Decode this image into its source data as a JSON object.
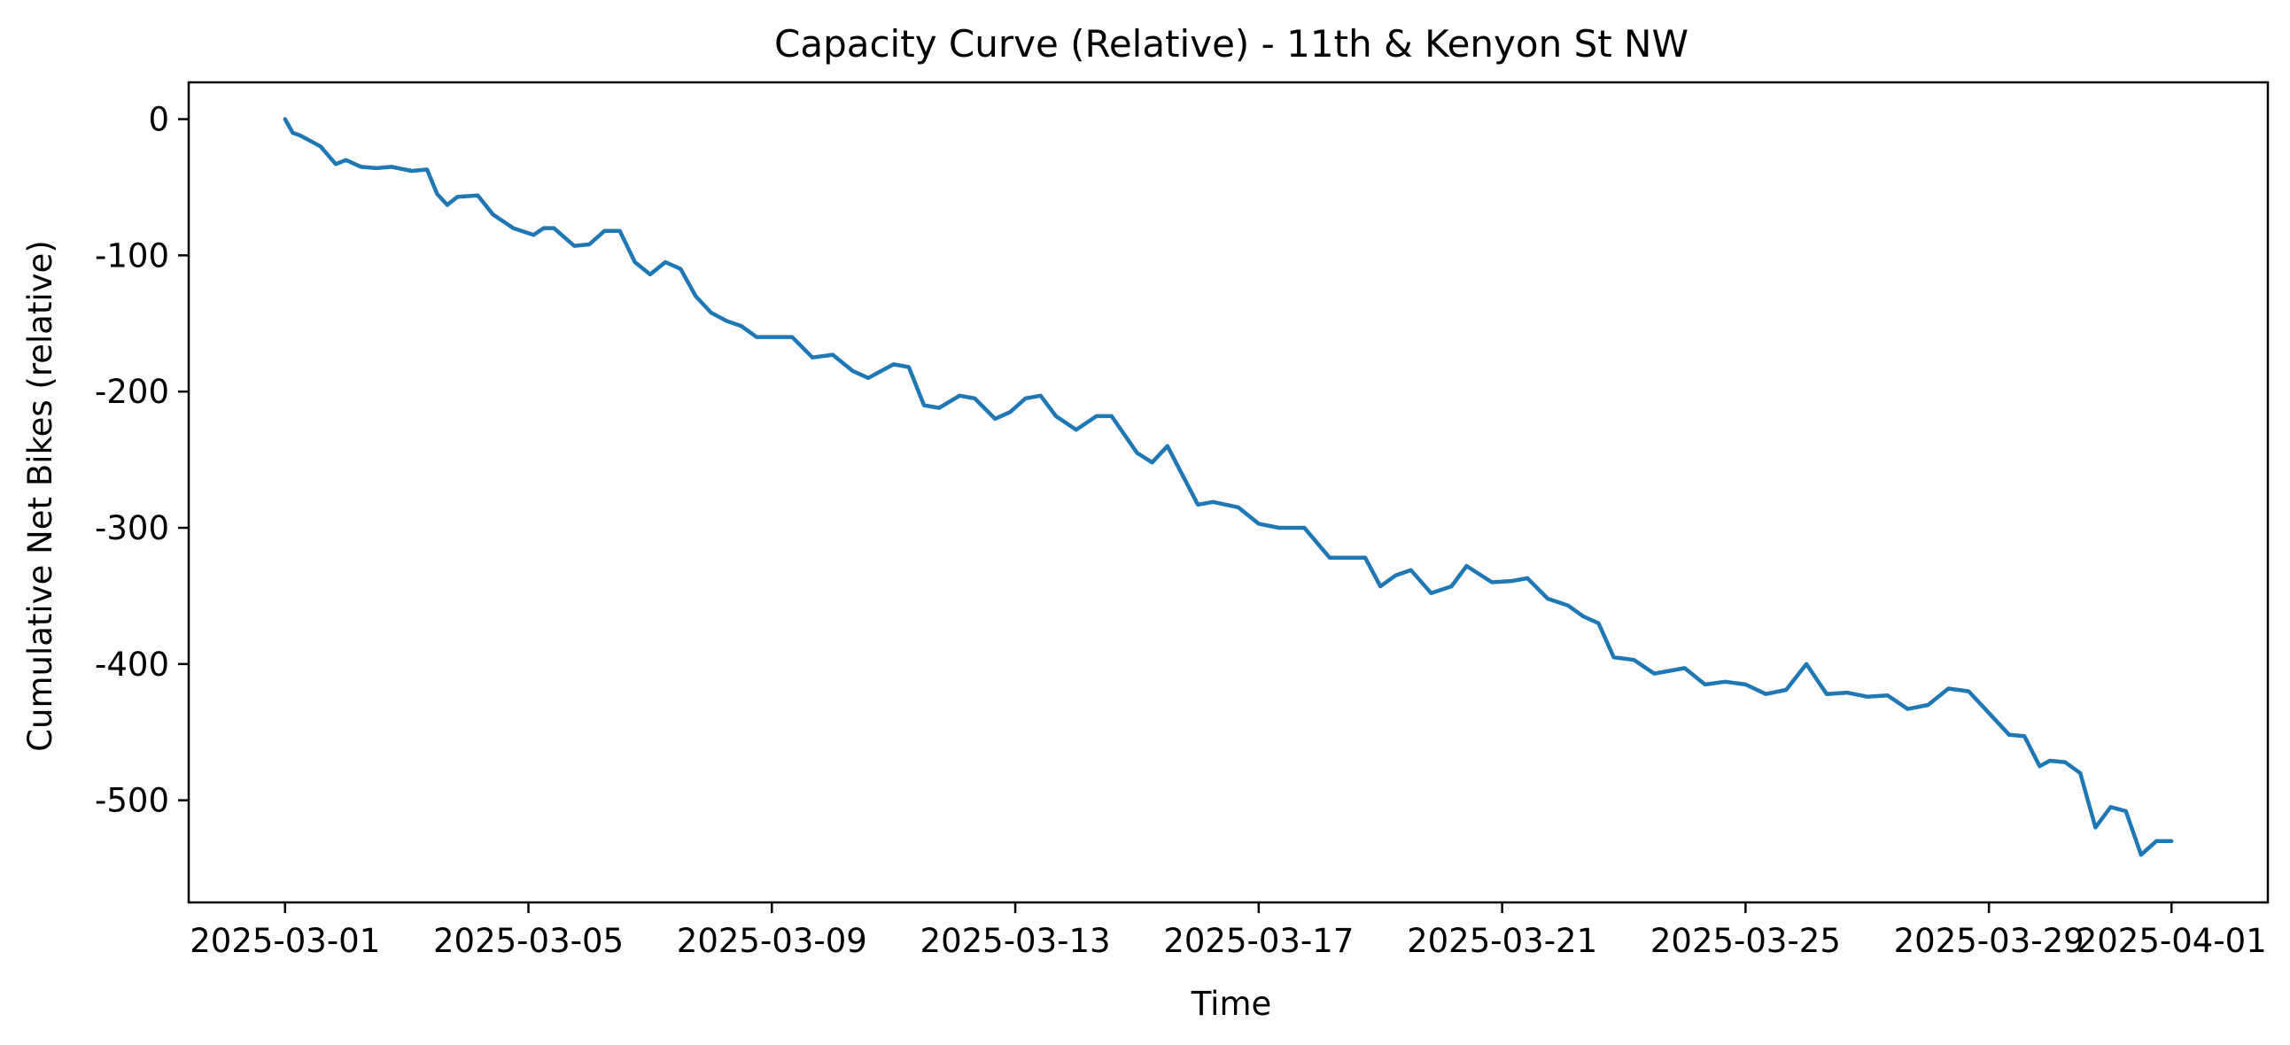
{
  "chart_data": {
    "type": "line",
    "title": "Capacity Curve (Relative) - 11th & Kenyon St NW",
    "xlabel": "Time",
    "ylabel": "Cumulative Net Bikes (relative)",
    "x_ticks": [
      "2025-03-01",
      "2025-03-05",
      "2025-03-09",
      "2025-03-13",
      "2025-03-17",
      "2025-03-21",
      "2025-03-25",
      "2025-03-29",
      "2025-04-01"
    ],
    "y_ticks": [
      0,
      -100,
      -200,
      -300,
      -400,
      -500
    ],
    "xlim": [
      "2025-02-27T10:00",
      "2025-04-02T14:00"
    ],
    "ylim": [
      -575,
      27
    ],
    "grid": false,
    "series": [
      {
        "color": "#1f77b4",
        "x": [
          "2025-03-01T00:00",
          "2025-03-01T03:00",
          "2025-03-01T06:00",
          "2025-03-01T14:00",
          "2025-03-01T20:00",
          "2025-03-02T00:00",
          "2025-03-02T06:00",
          "2025-03-02T12:00",
          "2025-03-02T18:00",
          "2025-03-03T02:00",
          "2025-03-03T08:00",
          "2025-03-03T12:00",
          "2025-03-03T16:00",
          "2025-03-03T20:00",
          "2025-03-04T04:00",
          "2025-03-04T10:00",
          "2025-03-04T18:00",
          "2025-03-05T02:00",
          "2025-03-05T06:00",
          "2025-03-05T10:00",
          "2025-03-05T18:00",
          "2025-03-06T00:00",
          "2025-03-06T06:00",
          "2025-03-06T12:00",
          "2025-03-06T18:00",
          "2025-03-07T00:00",
          "2025-03-07T06:00",
          "2025-03-07T12:00",
          "2025-03-07T18:00",
          "2025-03-08T00:00",
          "2025-03-08T06:00",
          "2025-03-08T12:00",
          "2025-03-08T18:00",
          "2025-03-09T00:00",
          "2025-03-09T08:00",
          "2025-03-09T16:00",
          "2025-03-10T00:00",
          "2025-03-10T08:00",
          "2025-03-10T14:00",
          "2025-03-11T00:00",
          "2025-03-11T06:00",
          "2025-03-11T12:00",
          "2025-03-11T18:00",
          "2025-03-12T02:00",
          "2025-03-12T08:00",
          "2025-03-12T16:00",
          "2025-03-12T22:00",
          "2025-03-13T04:00",
          "2025-03-13T10:00",
          "2025-03-13T16:00",
          "2025-03-14T00:00",
          "2025-03-14T08:00",
          "2025-03-14T14:00",
          "2025-03-15T00:00",
          "2025-03-15T06:00",
          "2025-03-15T12:00",
          "2025-03-16T00:00",
          "2025-03-16T06:00",
          "2025-03-16T16:00",
          "2025-03-17T00:00",
          "2025-03-17T08:00",
          "2025-03-17T18:00",
          "2025-03-18T04:00",
          "2025-03-18T10:00",
          "2025-03-18T18:00",
          "2025-03-19T00:00",
          "2025-03-19T06:00",
          "2025-03-19T12:00",
          "2025-03-19T20:00",
          "2025-03-20T04:00",
          "2025-03-20T10:00",
          "2025-03-20T20:00",
          "2025-03-21T04:00",
          "2025-03-21T10:00",
          "2025-03-21T18:00",
          "2025-03-22T02:00",
          "2025-03-22T08:00",
          "2025-03-22T14:00",
          "2025-03-22T20:00",
          "2025-03-23T04:00",
          "2025-03-23T12:00",
          "2025-03-24T00:00",
          "2025-03-24T08:00",
          "2025-03-24T16:00",
          "2025-03-25T00:00",
          "2025-03-25T08:00",
          "2025-03-25T16:00",
          "2025-03-26T00:00",
          "2025-03-26T08:00",
          "2025-03-26T16:00",
          "2025-03-27T00:00",
          "2025-03-27T08:00",
          "2025-03-27T16:00",
          "2025-03-28T00:00",
          "2025-03-28T08:00",
          "2025-03-28T16:00",
          "2025-03-29T00:00",
          "2025-03-29T08:00",
          "2025-03-29T14:00",
          "2025-03-29T20:00",
          "2025-03-30T00:00",
          "2025-03-30T06:00",
          "2025-03-30T12:00",
          "2025-03-30T18:00",
          "2025-03-31T00:00",
          "2025-03-31T06:00",
          "2025-03-31T12:00",
          "2025-03-31T18:00",
          "2025-04-01T00:00"
        ],
        "y": [
          0,
          -10,
          -12,
          -20,
          -33,
          -30,
          -35,
          -36,
          -35,
          -38,
          -37,
          -55,
          -63,
          -57,
          -56,
          -70,
          -80,
          -85,
          -80,
          -80,
          -93,
          -92,
          -82,
          -82,
          -105,
          -114,
          -105,
          -110,
          -130,
          -142,
          -148,
          -152,
          -160,
          -160,
          -160,
          -175,
          -173,
          -185,
          -190,
          -180,
          -182,
          -210,
          -212,
          -203,
          -205,
          -220,
          -215,
          -205,
          -203,
          -218,
          -228,
          -218,
          -218,
          -245,
          -252,
          -240,
          -283,
          -281,
          -285,
          -297,
          -300,
          -300,
          -322,
          -322,
          -322,
          -343,
          -335,
          -331,
          -348,
          -343,
          -328,
          -340,
          -339,
          -337,
          -352,
          -357,
          -365,
          -370,
          -395,
          -397,
          -407,
          -403,
          -415,
          -413,
          -415,
          -422,
          -419,
          -400,
          -422,
          -421,
          -424,
          -423,
          -433,
          -430,
          -418,
          -420,
          -436,
          -452,
          -453,
          -475,
          -471,
          -472,
          -480,
          -520,
          -505,
          -508,
          -540,
          -530,
          -530
        ]
      }
    ]
  }
}
